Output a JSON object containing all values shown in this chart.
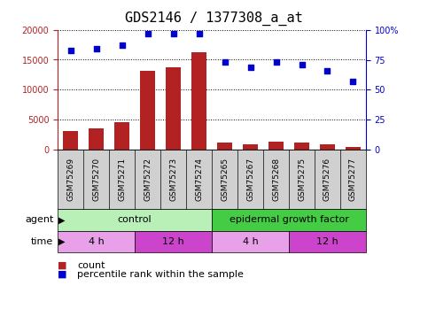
{
  "title": "GDS2146 / 1377308_a_at",
  "categories": [
    "GSM75269",
    "GSM75270",
    "GSM75271",
    "GSM75272",
    "GSM75273",
    "GSM75274",
    "GSM75265",
    "GSM75267",
    "GSM75268",
    "GSM75275",
    "GSM75276",
    "GSM75277"
  ],
  "bar_values": [
    3000,
    3500,
    4600,
    13200,
    13800,
    16200,
    1200,
    900,
    1300,
    1100,
    800,
    400
  ],
  "dot_values": [
    83,
    84,
    87,
    97,
    97,
    97,
    73,
    69,
    73,
    71,
    66,
    57
  ],
  "bar_color": "#b22222",
  "dot_color": "#0000cc",
  "ylim_left": [
    0,
    20000
  ],
  "ylim_right": [
    0,
    100
  ],
  "yticks_left": [
    0,
    5000,
    10000,
    15000,
    20000
  ],
  "yticks_right": [
    0,
    25,
    50,
    75,
    100
  ],
  "ytick_labels_right": [
    "0",
    "25",
    "50",
    "75",
    "100%"
  ],
  "agent_groups": [
    {
      "label": "control",
      "start": 0,
      "end": 6,
      "color": "#b8f0b8"
    },
    {
      "label": "epidermal growth factor",
      "start": 6,
      "end": 12,
      "color": "#44cc44"
    }
  ],
  "time_groups": [
    {
      "label": "4 h",
      "start": 0,
      "end": 3,
      "color": "#e8a0e8"
    },
    {
      "label": "12 h",
      "start": 3,
      "end": 6,
      "color": "#cc44cc"
    },
    {
      "label": "4 h",
      "start": 6,
      "end": 9,
      "color": "#e8a0e8"
    },
    {
      "label": "12 h",
      "start": 9,
      "end": 12,
      "color": "#cc44cc"
    }
  ],
  "legend_count_color": "#b22222",
  "legend_dot_color": "#0000cc",
  "bar_width": 0.6,
  "tick_bg_color": "#d0d0d0",
  "title_fontsize": 11,
  "axis_fontsize": 7,
  "label_fontsize": 8
}
